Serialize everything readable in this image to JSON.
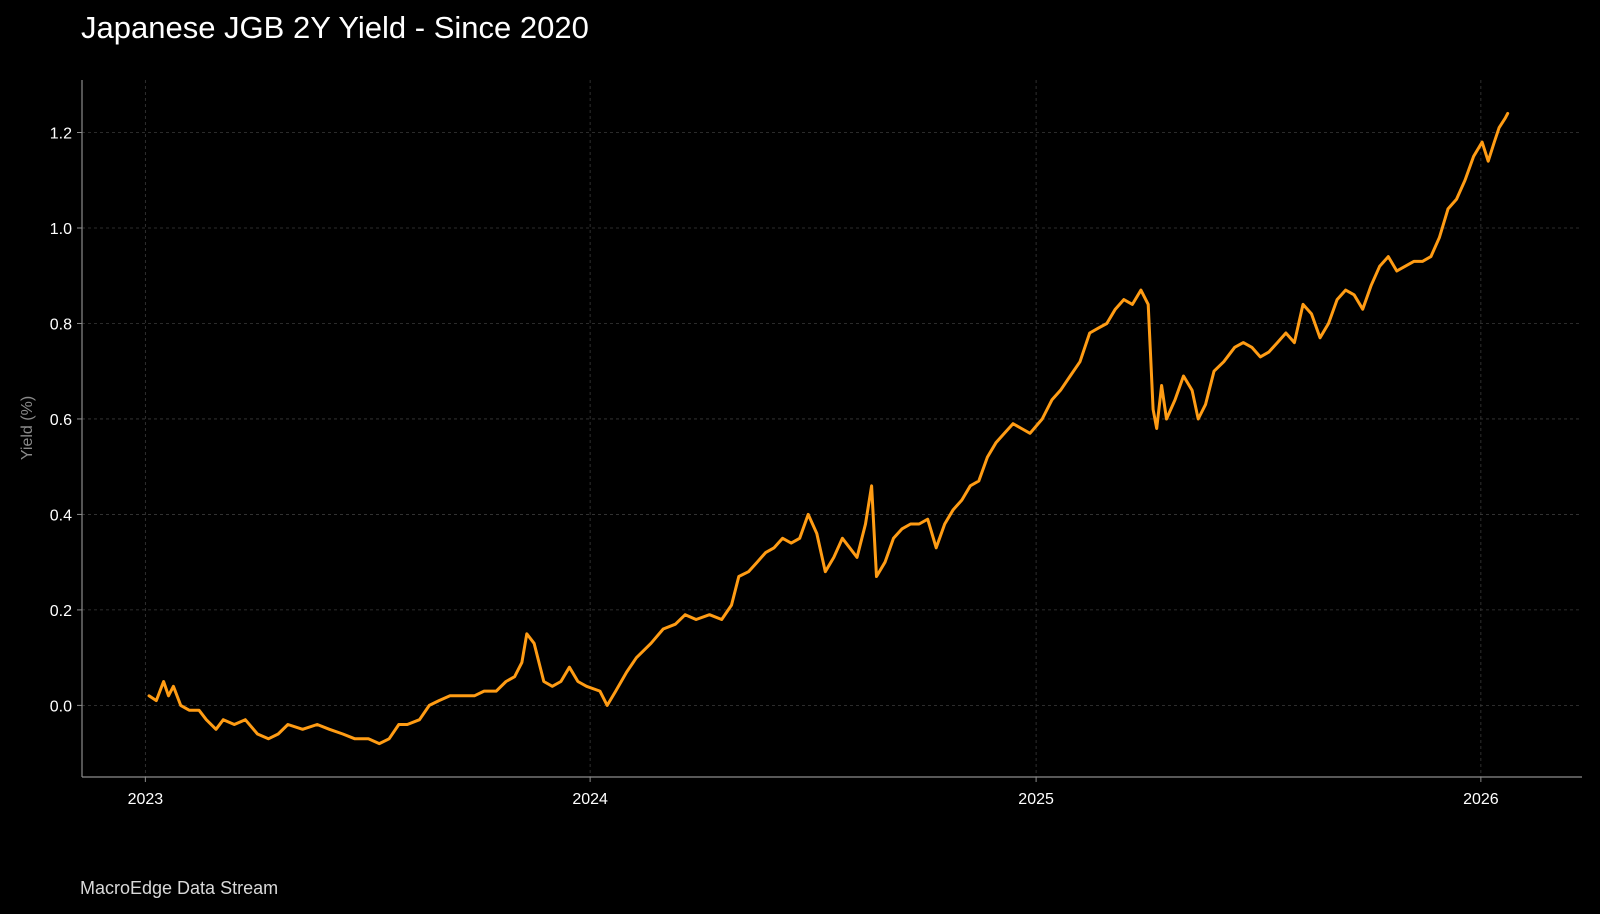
{
  "header": {
    "title": "Japanese JGB 2Y Yield - Since 2020"
  },
  "footer": {
    "source": "MacroEdge Data Stream"
  },
  "colors": {
    "background": "#000000",
    "line": "#ff9c14",
    "grid": "#3a3a3a",
    "axis": "#8c8c8c",
    "text": "#ffffff",
    "axis_title": "#8a8a8a"
  },
  "chart_data": {
    "type": "line",
    "title": "Japanese JGB 2Y Yield - Since 2020",
    "xlabel": "",
    "ylabel": "Yield (%)",
    "grid": true,
    "legend": "none",
    "xlim": [
      "2022-11-10",
      "2026-03-25"
    ],
    "ylim": [
      -0.15,
      1.31
    ],
    "x_ticks": [
      "2023",
      "2024",
      "2025",
      "2026"
    ],
    "y_ticks": [
      "0.0",
      "0.2",
      "0.4",
      "0.6",
      "0.8",
      "1.0",
      "1.2"
    ],
    "series": [
      {
        "points": [
          [
            "2023-01-04",
            0.02
          ],
          [
            "2023-01-10",
            0.01
          ],
          [
            "2023-01-16",
            0.05
          ],
          [
            "2023-01-20",
            0.02
          ],
          [
            "2023-01-24",
            0.04
          ],
          [
            "2023-01-30",
            0.0
          ],
          [
            "2023-02-06",
            -0.01
          ],
          [
            "2023-02-14",
            -0.01
          ],
          [
            "2023-02-20",
            -0.03
          ],
          [
            "2023-02-28",
            -0.05
          ],
          [
            "2023-03-06",
            -0.03
          ],
          [
            "2023-03-15",
            -0.04
          ],
          [
            "2023-03-24",
            -0.03
          ],
          [
            "2023-04-03",
            -0.06
          ],
          [
            "2023-04-12",
            -0.07
          ],
          [
            "2023-04-20",
            -0.06
          ],
          [
            "2023-04-28",
            -0.04
          ],
          [
            "2023-05-10",
            -0.05
          ],
          [
            "2023-05-22",
            -0.04
          ],
          [
            "2023-06-01",
            -0.05
          ],
          [
            "2023-06-12",
            -0.06
          ],
          [
            "2023-06-22",
            -0.07
          ],
          [
            "2023-07-03",
            -0.07
          ],
          [
            "2023-07-12",
            -0.08
          ],
          [
            "2023-07-20",
            -0.07
          ],
          [
            "2023-07-28",
            -0.04
          ],
          [
            "2023-08-04",
            -0.04
          ],
          [
            "2023-08-14",
            -0.03
          ],
          [
            "2023-08-22",
            0.0
          ],
          [
            "2023-08-30",
            0.01
          ],
          [
            "2023-09-08",
            0.02
          ],
          [
            "2023-09-18",
            0.02
          ],
          [
            "2023-09-28",
            0.02
          ],
          [
            "2023-10-06",
            0.03
          ],
          [
            "2023-10-16",
            0.03
          ],
          [
            "2023-10-24",
            0.05
          ],
          [
            "2023-10-31",
            0.06
          ],
          [
            "2023-11-06",
            0.09
          ],
          [
            "2023-11-10",
            0.15
          ],
          [
            "2023-11-16",
            0.13
          ],
          [
            "2023-11-24",
            0.05
          ],
          [
            "2023-12-01",
            0.04
          ],
          [
            "2023-12-08",
            0.05
          ],
          [
            "2023-12-15",
            0.08
          ],
          [
            "2023-12-22",
            0.05
          ],
          [
            "2023-12-29",
            0.04
          ],
          [
            "2024-01-09",
            0.03
          ],
          [
            "2024-01-15",
            0.0
          ],
          [
            "2024-01-22",
            0.03
          ],
          [
            "2024-01-31",
            0.07
          ],
          [
            "2024-02-08",
            0.1
          ],
          [
            "2024-02-20",
            0.13
          ],
          [
            "2024-03-01",
            0.16
          ],
          [
            "2024-03-11",
            0.17
          ],
          [
            "2024-03-19",
            0.19
          ],
          [
            "2024-03-28",
            0.18
          ],
          [
            "2024-04-08",
            0.19
          ],
          [
            "2024-04-18",
            0.18
          ],
          [
            "2024-04-26",
            0.21
          ],
          [
            "2024-05-02",
            0.27
          ],
          [
            "2024-05-10",
            0.28
          ],
          [
            "2024-05-17",
            0.3
          ],
          [
            "2024-05-24",
            0.32
          ],
          [
            "2024-05-31",
            0.33
          ],
          [
            "2024-06-07",
            0.35
          ],
          [
            "2024-06-14",
            0.34
          ],
          [
            "2024-06-21",
            0.35
          ],
          [
            "2024-06-28",
            0.4
          ],
          [
            "2024-07-05",
            0.36
          ],
          [
            "2024-07-12",
            0.28
          ],
          [
            "2024-07-19",
            0.31
          ],
          [
            "2024-07-26",
            0.35
          ],
          [
            "2024-08-01",
            0.33
          ],
          [
            "2024-08-07",
            0.31
          ],
          [
            "2024-08-14",
            0.38
          ],
          [
            "2024-08-19",
            0.46
          ],
          [
            "2024-08-23",
            0.27
          ],
          [
            "2024-08-30",
            0.3
          ],
          [
            "2024-09-06",
            0.35
          ],
          [
            "2024-09-13",
            0.37
          ],
          [
            "2024-09-20",
            0.38
          ],
          [
            "2024-09-27",
            0.38
          ],
          [
            "2024-10-04",
            0.39
          ],
          [
            "2024-10-11",
            0.33
          ],
          [
            "2024-10-18",
            0.38
          ],
          [
            "2024-10-25",
            0.41
          ],
          [
            "2024-11-01",
            0.43
          ],
          [
            "2024-11-08",
            0.46
          ],
          [
            "2024-11-15",
            0.47
          ],
          [
            "2024-11-22",
            0.52
          ],
          [
            "2024-11-29",
            0.55
          ],
          [
            "2024-12-06",
            0.57
          ],
          [
            "2024-12-13",
            0.59
          ],
          [
            "2024-12-20",
            0.58
          ],
          [
            "2024-12-27",
            0.57
          ],
          [
            "2025-01-06",
            0.6
          ],
          [
            "2025-01-14",
            0.64
          ],
          [
            "2025-01-21",
            0.66
          ],
          [
            "2025-01-29",
            0.69
          ],
          [
            "2025-02-06",
            0.72
          ],
          [
            "2025-02-14",
            0.78
          ],
          [
            "2025-02-21",
            0.79
          ],
          [
            "2025-02-28",
            0.8
          ],
          [
            "2025-03-07",
            0.83
          ],
          [
            "2025-03-14",
            0.85
          ],
          [
            "2025-03-21",
            0.84
          ],
          [
            "2025-03-28",
            0.87
          ],
          [
            "2025-04-03",
            0.84
          ],
          [
            "2025-04-07",
            0.62
          ],
          [
            "2025-04-10",
            0.58
          ],
          [
            "2025-04-14",
            0.67
          ],
          [
            "2025-04-18",
            0.6
          ],
          [
            "2025-04-25",
            0.64
          ],
          [
            "2025-05-02",
            0.69
          ],
          [
            "2025-05-09",
            0.66
          ],
          [
            "2025-05-14",
            0.6
          ],
          [
            "2025-05-20",
            0.63
          ],
          [
            "2025-05-27",
            0.7
          ],
          [
            "2025-06-04",
            0.72
          ],
          [
            "2025-06-13",
            0.75
          ],
          [
            "2025-06-20",
            0.76
          ],
          [
            "2025-06-27",
            0.75
          ],
          [
            "2025-07-04",
            0.73
          ],
          [
            "2025-07-11",
            0.74
          ],
          [
            "2025-07-18",
            0.76
          ],
          [
            "2025-07-25",
            0.78
          ],
          [
            "2025-08-01",
            0.76
          ],
          [
            "2025-08-08",
            0.84
          ],
          [
            "2025-08-15",
            0.82
          ],
          [
            "2025-08-22",
            0.77
          ],
          [
            "2025-08-29",
            0.8
          ],
          [
            "2025-09-05",
            0.85
          ],
          [
            "2025-09-12",
            0.87
          ],
          [
            "2025-09-19",
            0.86
          ],
          [
            "2025-09-26",
            0.83
          ],
          [
            "2025-10-03",
            0.88
          ],
          [
            "2025-10-10",
            0.92
          ],
          [
            "2025-10-17",
            0.94
          ],
          [
            "2025-10-24",
            0.91
          ],
          [
            "2025-10-31",
            0.92
          ],
          [
            "2025-11-07",
            0.93
          ],
          [
            "2025-11-14",
            0.93
          ],
          [
            "2025-11-21",
            0.94
          ],
          [
            "2025-11-28",
            0.98
          ],
          [
            "2025-12-05",
            1.04
          ],
          [
            "2025-12-12",
            1.06
          ],
          [
            "2025-12-19",
            1.1
          ],
          [
            "2025-12-26",
            1.15
          ],
          [
            "2026-01-02",
            1.18
          ],
          [
            "2026-01-07",
            1.14
          ],
          [
            "2026-01-12",
            1.18
          ],
          [
            "2026-01-16",
            1.21
          ],
          [
            "2026-01-21",
            1.23
          ],
          [
            "2026-01-23",
            1.24
          ]
        ]
      }
    ]
  }
}
